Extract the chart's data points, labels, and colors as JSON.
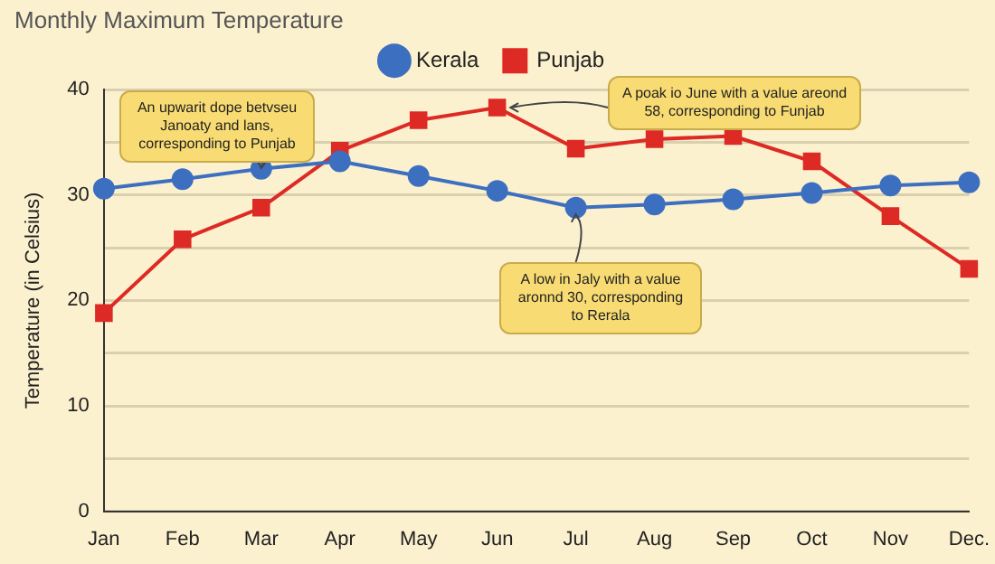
{
  "chart_data": {
    "type": "line",
    "title": "Monthly Maximum Temperature",
    "ylabel": "Temperature (in Celsius)",
    "categories": [
      "Jan",
      "Feb",
      "Mar",
      "Apr",
      "May",
      "Jun",
      "Jul",
      "Aug",
      "Sep",
      "Oct",
      "Nov",
      "Dec."
    ],
    "series": [
      {
        "name": "Kerala",
        "color": "#3d6fc0",
        "marker": "circle",
        "values": [
          30.6,
          31.5,
          32.5,
          33.2,
          31.8,
          30.4,
          28.8,
          29.1,
          29.6,
          30.2,
          30.9,
          31.2
        ]
      },
      {
        "name": "Punjab",
        "color": "#dd2a24",
        "marker": "square",
        "values": [
          18.8,
          25.8,
          28.8,
          34.2,
          37.1,
          38.3,
          34.4,
          35.3,
          35.6,
          33.2,
          28.0,
          23.0
        ]
      }
    ],
    "ylim": [
      0,
      40
    ],
    "yticks": [
      0,
      {
        "value": 5,
        "label": null
      },
      10,
      {
        "value": 15,
        "label": null
      },
      20,
      {
        "value": 25,
        "label": null
      },
      30,
      {
        "value": 35,
        "label": null
      },
      40
    ],
    "grid": "y",
    "legend": "top",
    "annotations": [
      {
        "text": "An upwarit dope betvseu Janoaty and lans, corresponding to Punjab",
        "x": "Mar",
        "y": 32.5
      },
      {
        "text": "A poak io June with a value areond 58, corresponding to Funjab",
        "x": "Jun",
        "y": 38.3
      },
      {
        "text": "A low in Jaly with a value aronnd 30, corresponding to Rerala",
        "x": "Jul",
        "y": 28.8
      }
    ]
  }
}
